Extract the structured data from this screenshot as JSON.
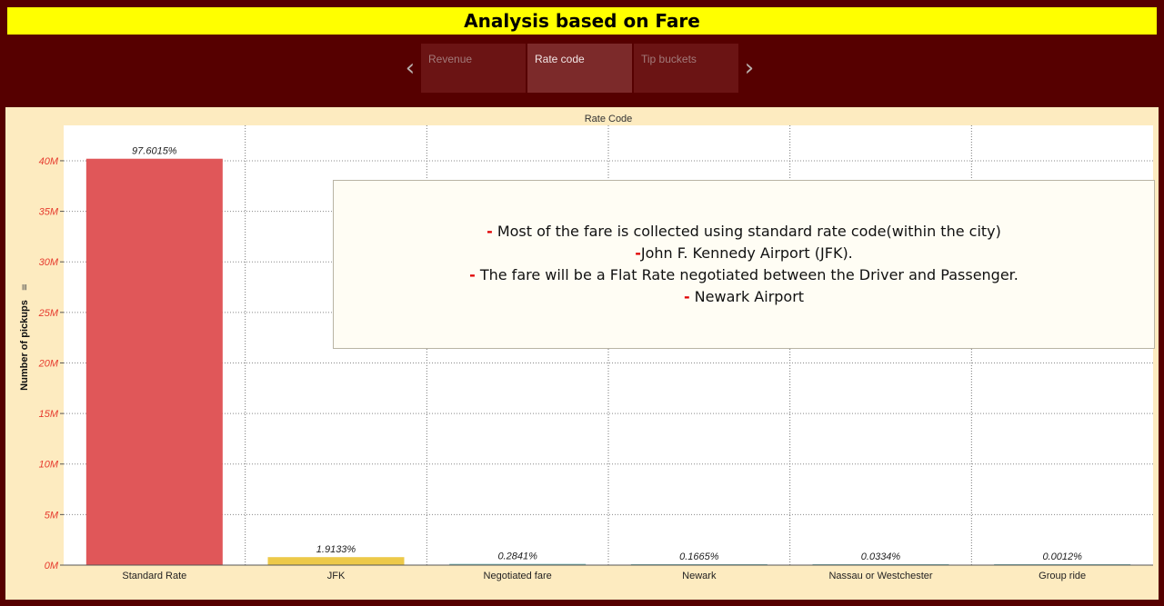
{
  "dashboard": {
    "title": "Analysis based on Fare"
  },
  "story": {
    "tabs": [
      {
        "label": "Revenue",
        "active": false
      },
      {
        "label": "Rate code",
        "active": true
      },
      {
        "label": "Tip buckets",
        "active": false
      }
    ]
  },
  "annotation": {
    "lines": [
      {
        "prefix": "-",
        "text": " Most of the fare is collected using standard rate code(within the city)"
      },
      {
        "prefix": "-",
        "text": "John F. Kennedy Airport (JFK)."
      },
      {
        "prefix": "-",
        "text": " The fare will be a Flat Rate negotiated between the Driver and Passenger."
      },
      {
        "prefix": "-",
        "text": " Newark Airport"
      }
    ]
  },
  "colors": {
    "standard": "#e05759",
    "jfk": "#edc948",
    "others": "#76b7b2",
    "axis_tick": "#e63b2e",
    "plot_bg": "#ffffff",
    "panel_bg": "#fdebc0"
  },
  "chart_data": {
    "type": "bar",
    "title": "Rate Code",
    "ylabel": "Number of pickups",
    "categories": [
      "Standard Rate",
      "JFK",
      "Negotiated fare",
      "Newark",
      "Nassau or Westchester",
      "Group ride"
    ],
    "values": [
      40200000,
      790000,
      120000,
      70000,
      14000,
      500
    ],
    "data_labels": [
      "97.6015%",
      "1.9133%",
      "0.2841%",
      "0.1665%",
      "0.0334%",
      "0.0012%"
    ],
    "ylim": [
      0,
      43500000
    ],
    "yticks": [
      0,
      5000000,
      10000000,
      15000000,
      20000000,
      25000000,
      30000000,
      35000000,
      40000000
    ],
    "ytick_labels": [
      "0M",
      "5M",
      "10M",
      "15M",
      "20M",
      "25M",
      "30M",
      "35M",
      "40M"
    ],
    "grid": true
  }
}
